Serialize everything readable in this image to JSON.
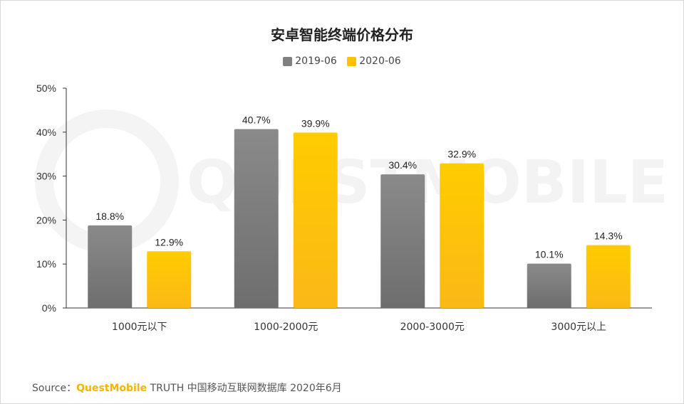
{
  "chart_data": {
    "type": "bar",
    "title": "安卓智能终端价格分布",
    "categories": [
      "1000元以下",
      "1000-2000元",
      "2000-3000元",
      "3000元以上"
    ],
    "series": [
      {
        "name": "2019-06",
        "values": [
          18.8,
          40.7,
          30.4,
          10.1
        ],
        "labels": [
          "18.8%",
          "40.7%",
          "30.4%",
          "10.1%"
        ],
        "color": "#808080"
      },
      {
        "name": "2020-06",
        "values": [
          12.9,
          39.9,
          32.9,
          14.3
        ],
        "labels": [
          "12.9%",
          "39.9%",
          "32.9%",
          "14.3%"
        ],
        "color": "#fdc300"
      }
    ],
    "ylim": [
      0,
      50
    ],
    "yticks": [
      "0%",
      "10%",
      "20%",
      "30%",
      "40%",
      "50%"
    ],
    "xlabel": "",
    "ylabel": "",
    "grid": false,
    "legend": "top-center"
  },
  "watermark": "QUESTMOBILE",
  "footer": {
    "source_label": "Source：",
    "brand": "QuestMobile",
    "text": "TRUTH 中国移动互联网数据库 2020年6月"
  }
}
